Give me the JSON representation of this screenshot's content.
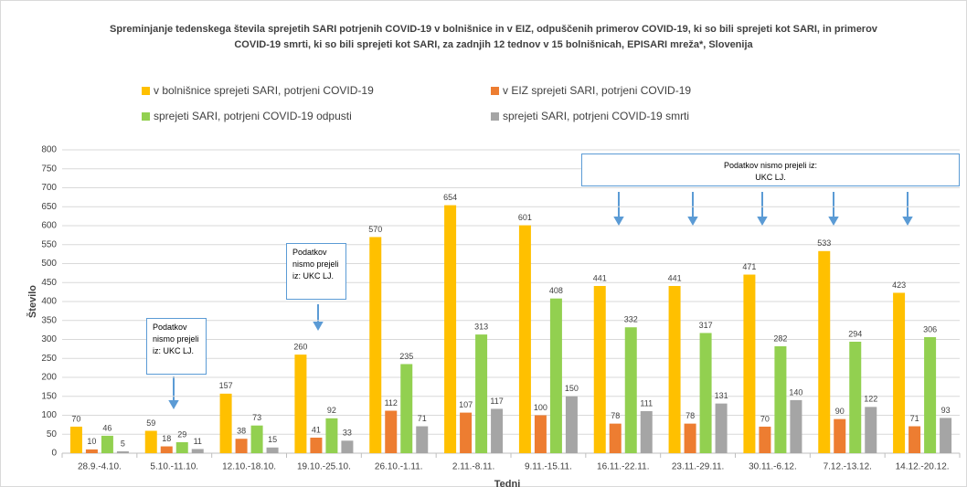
{
  "chart_data": {
    "type": "bar",
    "title": "Spreminjanje tedenskega števila sprejetih SARI potrjenih COVID-19 v bolnišnice in v EIZ, odpuščenih primerov COVID-19, ki so bili sprejeti kot SARI, in primerov COVID-19 smrti, ki so bili sprejeti kot SARI, za zadnjih 12 tednov  v 15 bolnišnicah, EPISARI mreža*, Slovenija",
    "x_label": "Tedni",
    "y_label": "Število",
    "categories": [
      "28.9.-4.10.",
      "5.10.-11.10.",
      "12.10.-18.10.",
      "19.10.-25.10.",
      "26.10.-1.11.",
      "2.11.-8.11.",
      "9.11.-15.11.",
      "16.11.-22.11.",
      "23.11.-29.11.",
      "30.11.-6.12.",
      "7.12.-13.12.",
      "14.12.-20.12."
    ],
    "series": [
      {
        "name": "v bolnišnice sprejeti SARI, potrjeni COVID-19",
        "color": "#ffc000",
        "values": [
          70,
          59,
          157,
          260,
          570,
          654,
          601,
          441,
          441,
          471,
          533,
          423
        ]
      },
      {
        "name": "v EIZ sprejeti SARI, potrjeni COVID-19",
        "color": "#ed7d31",
        "values": [
          10,
          18,
          38,
          41,
          112,
          107,
          100,
          78,
          78,
          70,
          90,
          71
        ]
      },
      {
        "name": "sprejeti SARI, potrjeni COVID-19 odpusti",
        "color": "#92d050",
        "values": [
          46,
          29,
          73,
          92,
          235,
          313,
          408,
          332,
          317,
          282,
          294,
          306
        ]
      },
      {
        "name": "sprejeti SARI, potrjeni COVID-19 smrti",
        "color": "#a5a5a5",
        "values": [
          5,
          11,
          15,
          33,
          71,
          117,
          150,
          111,
          131,
          140,
          122,
          93
        ]
      }
    ],
    "ylim": [
      0,
      800
    ],
    "yticks": [
      0,
      50,
      100,
      150,
      200,
      250,
      300,
      350,
      400,
      450,
      500,
      550,
      600,
      650,
      700,
      750,
      800
    ],
    "annotations": [
      {
        "text": "Podatkov nismo prejeli iz: UKC LJ."
      },
      {
        "text": "Podatkov nismo prejeli iz: UKC LJ."
      },
      {
        "text": "Podatkov nismo prejeli iz: UKC LJ."
      }
    ]
  }
}
